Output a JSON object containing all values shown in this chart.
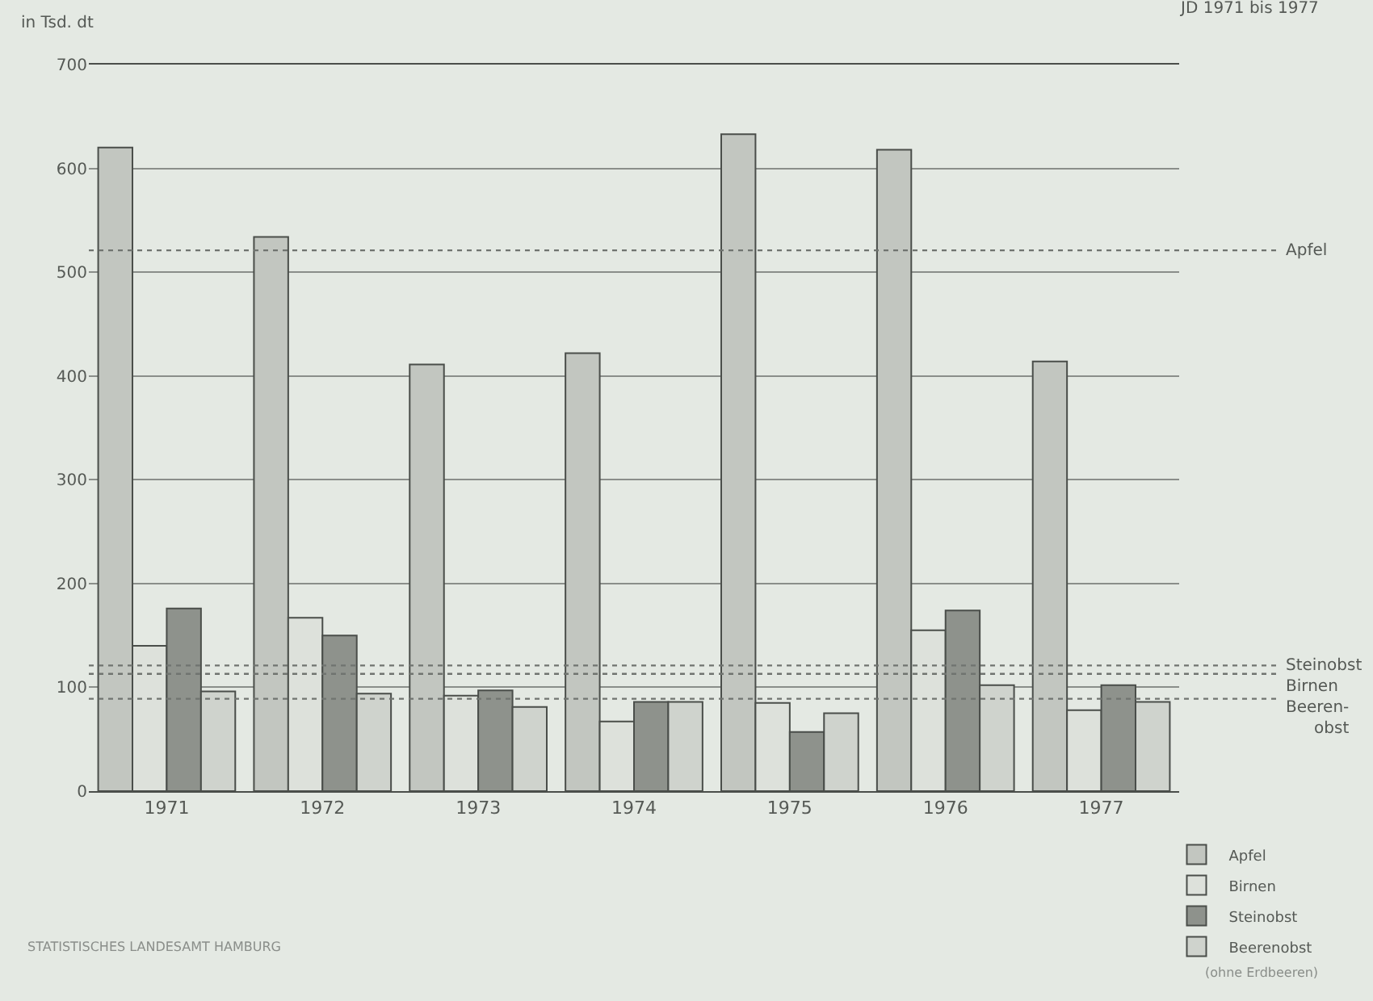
{
  "chart_data": {
    "type": "bar",
    "title": "JD 1971 bis 1977",
    "ylabel": "in Tsd. dt",
    "categories": [
      "1971",
      "1972",
      "1973",
      "1974",
      "1975",
      "1976",
      "1977"
    ],
    "series": [
      {
        "name": "Apfel",
        "color": "#c2c6c0",
        "values": [
          620,
          534,
          411,
          422,
          633,
          618,
          414
        ]
      },
      {
        "name": "Birnen",
        "color": "#dde1db",
        "values": [
          140,
          167,
          92,
          67,
          85,
          155,
          78
        ]
      },
      {
        "name": "Steinobst",
        "color": "#8e928c",
        "values": [
          176,
          150,
          97,
          86,
          57,
          174,
          102
        ]
      },
      {
        "name": "Beerenobst",
        "color": "#cfd3cd",
        "values": [
          96,
          94,
          81,
          86,
          75,
          102,
          86
        ]
      }
    ],
    "ylim": [
      0,
      700
    ],
    "yticks": [
      0,
      100,
      200,
      300,
      400,
      500,
      600,
      700
    ],
    "grid": "y",
    "legend": "bottom right",
    "ref_lines": [
      {
        "axis": "y",
        "value": 521,
        "label": "Apfel",
        "line_style": "dotted",
        "color": "#707470"
      },
      {
        "axis": "y",
        "value": 121,
        "label": "Steinobst",
        "line_style": "dotted",
        "color": "#707470"
      },
      {
        "axis": "y",
        "value": 113,
        "label": "Birnen",
        "line_style": "dotted",
        "color": "#707470"
      },
      {
        "axis": "y",
        "value": 89,
        "label": "Beeren-\nobst",
        "line_style": "dotted",
        "color": "#707470"
      }
    ],
    "annotations": [
      "STATISTISCHES LANDESAMT HAMBURG",
      "(ohne Erdbeeren)"
    ]
  }
}
